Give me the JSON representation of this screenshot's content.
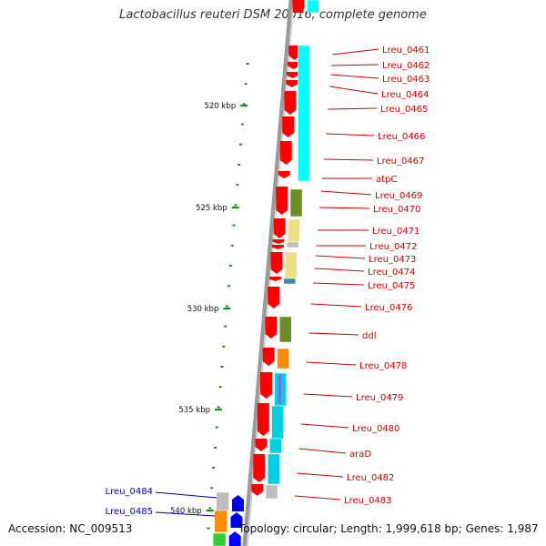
{
  "title": "Lactobacillus reuteri DSM 20016, complete genome",
  "accession": "Accession: NC_009513",
  "topology": "Topology: circular; Length: 1,999,618 bp; Genes: 1,987",
  "colors": {
    "cds_forward": "#ff0000",
    "cds_reverse": "#0000ff",
    "forward_label": "#cc0000",
    "reverse_label": "#000099",
    "tick": "#228b22",
    "backbone": "#7f7f7f"
  },
  "scale_labels": [
    "520 kbp",
    "525 kbp",
    "530 kbp",
    "535 kbp",
    "540 kbp"
  ],
  "gene_labels": [
    "Lreu_0461",
    "Lreu_0462",
    "Lreu_0463",
    "Lreu_0464",
    "Lreu_0465",
    "Lreu_0466",
    "Lreu_0467",
    "atpC",
    "Lreu_0469",
    "Lreu_0470",
    "Lreu_0471",
    "Lreu_0472",
    "Lreu_0473",
    "Lreu_0474",
    "Lreu_0475",
    "Lreu_0476",
    "ddl",
    "Lreu_0478",
    "Lreu_0479",
    "Lreu_0480",
    "araD",
    "Lreu_0482",
    "Lreu_0483"
  ],
  "reverse_gene_labels": [
    "Lreu_0484",
    "Lreu_0485"
  ],
  "cog_colors": [
    "#00ffff",
    "#00d0e0",
    "#6b8e23",
    "#eedd82",
    "#4682b4",
    "#ff8c00",
    "#bebebe",
    "#7b68ee",
    "#32cd32"
  ]
}
